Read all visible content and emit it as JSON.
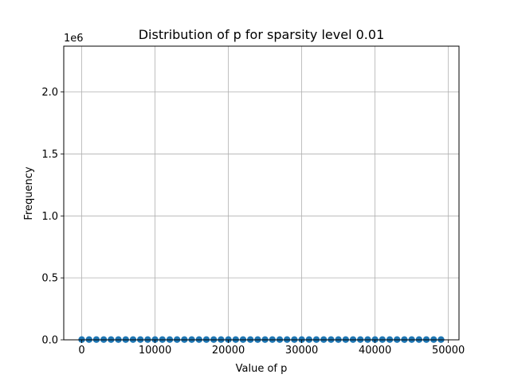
{
  "chart_data": {
    "type": "scatter",
    "title": "Distribution of p for sparsity level 0.01",
    "xlabel": "Value of p",
    "ylabel": "Frequency",
    "y_offset_label": "1e6",
    "xlim": [
      -2450,
      51450
    ],
    "ylim": [
      0,
      2.37
    ],
    "x_ticks": [
      0,
      10000,
      20000,
      30000,
      40000,
      50000
    ],
    "x_tick_labels": [
      "0",
      "10000",
      "20000",
      "30000",
      "40000",
      "50000"
    ],
    "y_ticks": [
      0,
      0.5,
      1.0,
      1.5,
      2.0
    ],
    "y_tick_labels": [
      "0.0",
      "0.5",
      "1.0",
      "1.5",
      "2.0"
    ],
    "grid": true,
    "marker_color": "#1f77b4",
    "series": [
      {
        "x": [
          0,
          1000,
          2000,
          3000,
          4000,
          5000,
          6000,
          7000,
          8000,
          9000,
          10000,
          11000,
          12000,
          13000,
          14000,
          15000,
          16000,
          17000,
          18000,
          19000,
          20000,
          21000,
          22000,
          23000,
          24000,
          25000,
          26000,
          27000,
          28000,
          29000,
          30000,
          31000,
          32000,
          33000,
          34000,
          35000,
          36000,
          37000,
          38000,
          39000,
          40000,
          41000,
          42000,
          43000,
          44000,
          45000,
          46000,
          47000,
          48000,
          49000
        ],
        "y": [
          0.002,
          0.002,
          0.002,
          0.002,
          0.002,
          0.002,
          0.002,
          0.002,
          0.002,
          0.002,
          0.002,
          0.002,
          0.002,
          0.002,
          0.002,
          0.002,
          0.002,
          0.002,
          0.002,
          0.002,
          0.002,
          0.002,
          0.002,
          0.002,
          0.002,
          0.002,
          0.002,
          0.002,
          0.002,
          0.002,
          0.002,
          0.002,
          0.002,
          0.002,
          0.002,
          0.002,
          0.002,
          0.002,
          0.002,
          0.002,
          0.002,
          0.002,
          0.002,
          0.002,
          0.002,
          0.002,
          0.002,
          0.002,
          0.002,
          0.002
        ]
      }
    ]
  }
}
